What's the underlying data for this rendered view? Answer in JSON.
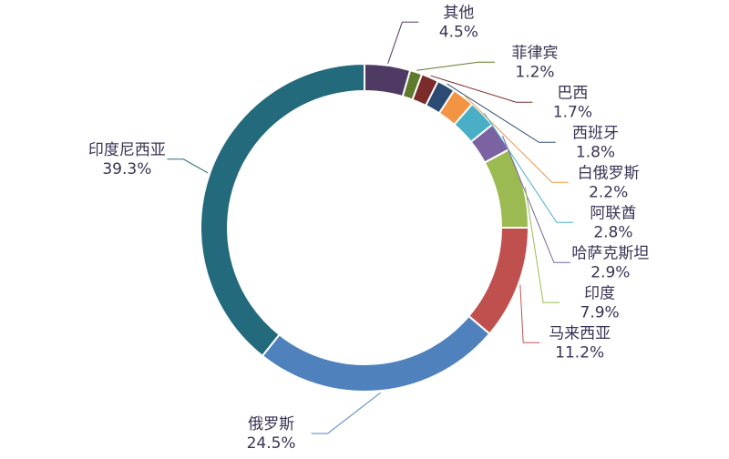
{
  "chart_data": {
    "type": "donut",
    "categories": [
      "其他",
      "菲律宾",
      "巴西",
      "西班牙",
      "白俄罗斯",
      "阿联酋",
      "哈萨克斯坦",
      "印度",
      "马来西亚",
      "俄罗斯",
      "印度尼西亚"
    ],
    "values": [
      4.5,
      1.2,
      1.7,
      1.8,
      2.2,
      2.8,
      2.9,
      7.9,
      11.2,
      24.5,
      39.3
    ],
    "value_labels": [
      "4.5%",
      "1.2%",
      "1.7%",
      "1.8%",
      "2.2%",
      "2.8%",
      "2.9%",
      "7.9%",
      "11.2%",
      "24.5%",
      "39.3%"
    ],
    "colors": [
      "#4f3a64",
      "#5e7a2c",
      "#7a2b2a",
      "#2b4a74",
      "#f29442",
      "#4aaec7",
      "#7b62a3",
      "#9bbb52",
      "#c0504d",
      "#4f81bd",
      "#236a7d"
    ]
  }
}
